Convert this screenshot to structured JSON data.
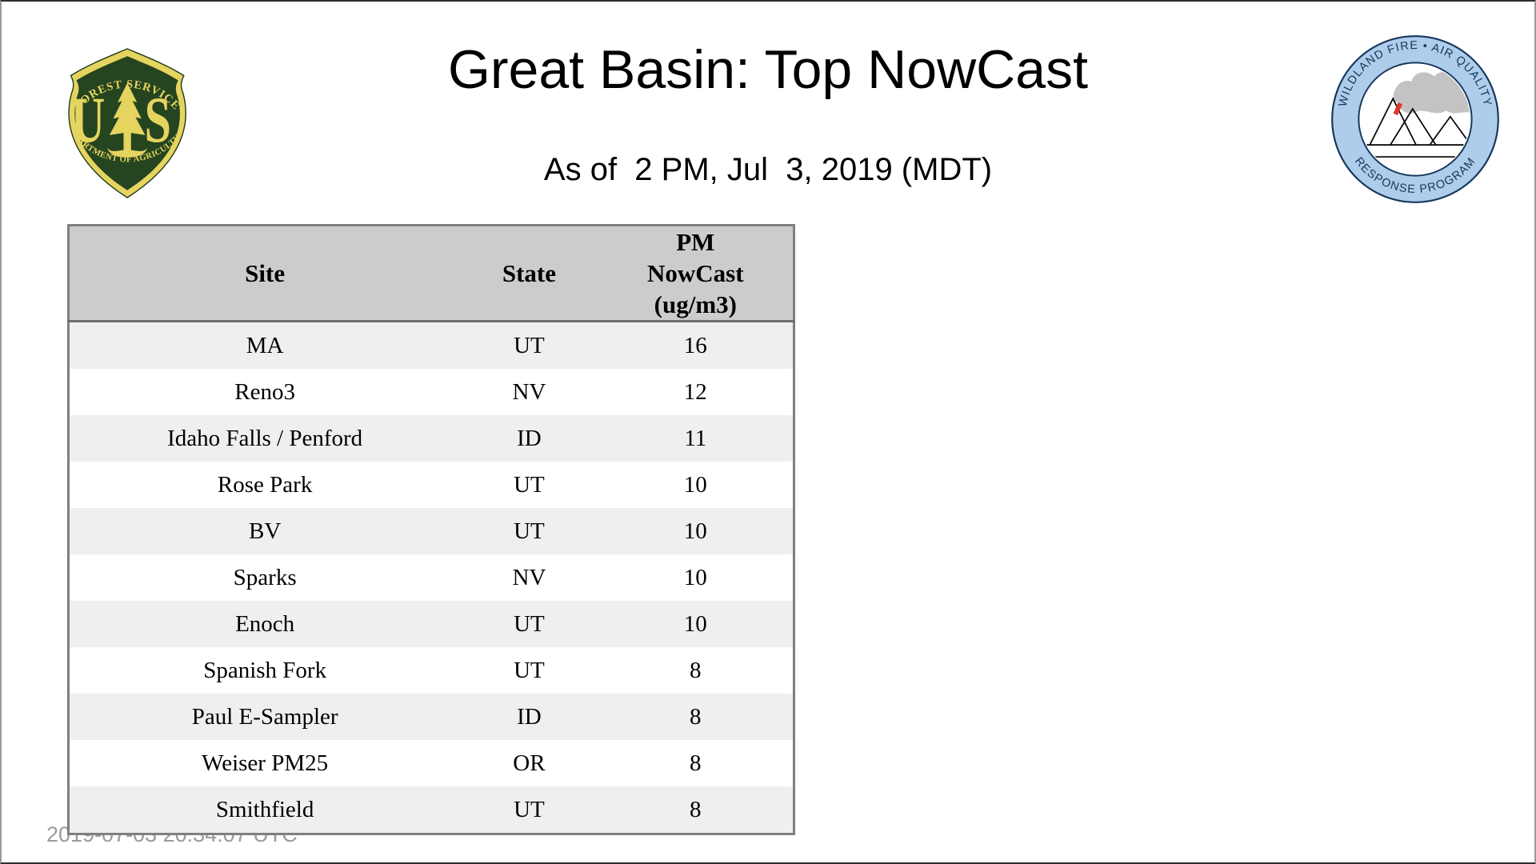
{
  "page": {
    "title": "Great Basin: Top NowCast",
    "subtitle": "As of  2 PM, Jul  3, 2019 (MDT)",
    "footer_timestamp": "2019-07-03 20:34:07 UTC"
  },
  "logos": {
    "forest_service": {
      "arc_top": "FOREST SERVICE",
      "letter_left": "U",
      "letter_right": "S",
      "arc_bottom": "DEPARTMENT OF AGRICULTURE",
      "gold": "#E5D45F",
      "green": "#254420"
    },
    "air_quality": {
      "arc_top": "WILDLAND FIRE • AIR QUALITY",
      "arc_bottom": "RESPONSE PROGRAM",
      "ring_fill": "#AECDEB",
      "outline": "#16365C",
      "smoke": "#C3C3C3",
      "flame": "#E0352B"
    }
  },
  "table": {
    "headers": {
      "site": "Site",
      "state": "State",
      "pm_lines": [
        "PM",
        "NowCast",
        "(ug/m3)"
      ]
    },
    "rows": [
      {
        "site": "MA",
        "state": "UT",
        "value": "16"
      },
      {
        "site": "Reno3",
        "state": "NV",
        "value": "12"
      },
      {
        "site": "Idaho Falls / Penford",
        "state": "ID",
        "value": "11"
      },
      {
        "site": "Rose Park",
        "state": "UT",
        "value": "10"
      },
      {
        "site": "BV",
        "state": "UT",
        "value": "10"
      },
      {
        "site": "Sparks",
        "state": "NV",
        "value": "10"
      },
      {
        "site": "Enoch",
        "state": "UT",
        "value": "10"
      },
      {
        "site": "Spanish Fork",
        "state": "UT",
        "value": "8"
      },
      {
        "site": "Paul E-Sampler",
        "state": "ID",
        "value": "8"
      },
      {
        "site": "Weiser PM25",
        "state": "OR",
        "value": "8"
      },
      {
        "site": "Smithfield",
        "state": "UT",
        "value": "8"
      }
    ]
  }
}
